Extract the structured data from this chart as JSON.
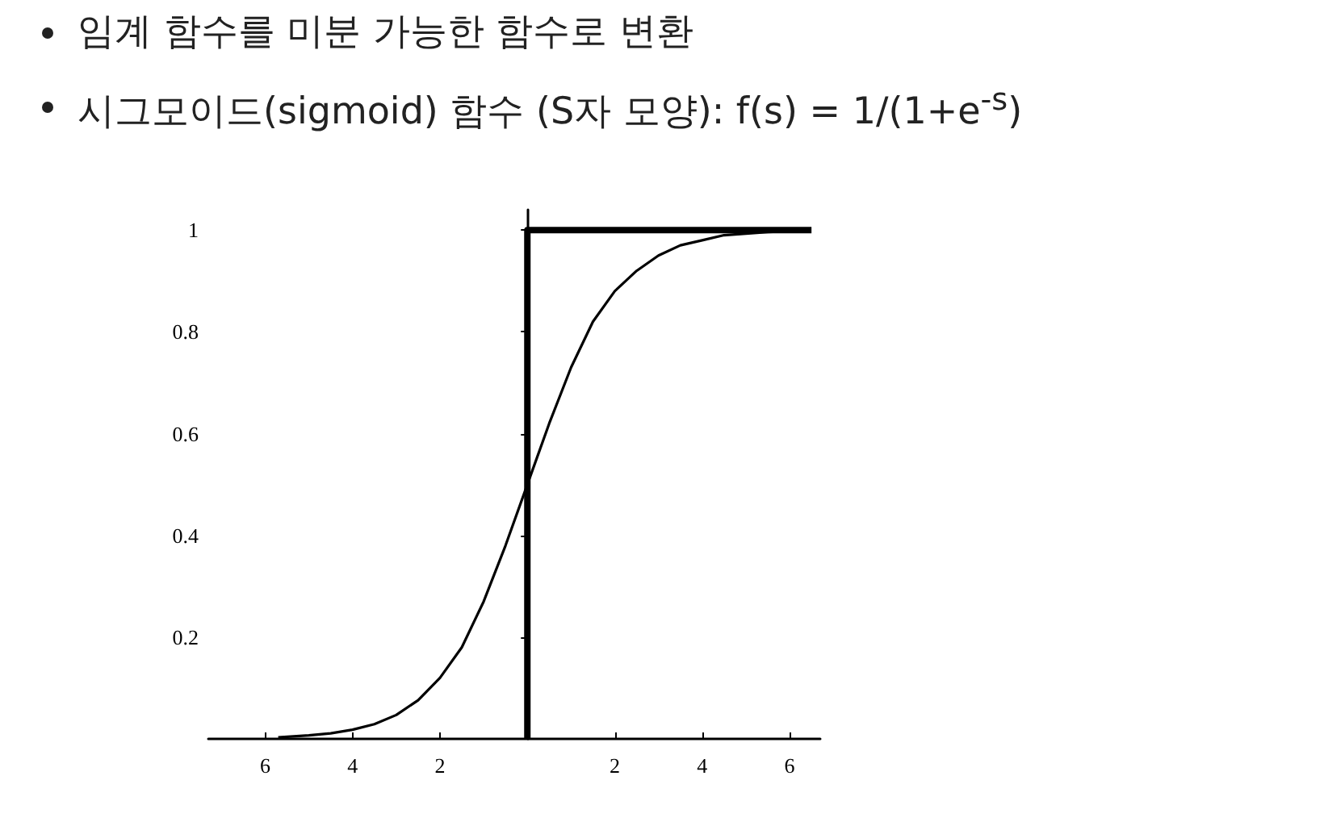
{
  "chart_data": {
    "type": "line",
    "title": "임계 함수를 미분 가능한 함수로 변환",
    "subtitle": "시그모이드(sigmoid) 함수 (S자 모양): f(s) = 1/(1+e$^{-s}$)",
    "series": [
      {
        "color": "#000000",
        "x": [
          -5.7,
          -5,
          -4.5,
          -4,
          -3.5,
          -3,
          -2.5,
          -2,
          -1.5,
          -1,
          -0.5,
          0,
          0.5,
          1,
          1.5,
          2,
          2.5,
          3,
          3.5,
          4,
          4.5,
          5,
          5.5,
          6.1
        ],
        "values": [
          0.003,
          0.007,
          0.011,
          0.018,
          0.029,
          0.047,
          0.076,
          0.12,
          0.18,
          0.27,
          0.38,
          0.5,
          0.62,
          0.73,
          0.82,
          0.88,
          0.92,
          0.95,
          0.97,
          0.98,
          0.99,
          0.993,
          0.996,
          0.998
        ]
      },
      {
        "color": "#000000",
        "x": [
          0,
          0,
          6.5
        ],
        "values": [
          0,
          1,
          1
        ]
      }
    ],
    "xlim": [
      -7.3,
      6.7
    ],
    "ylim": [
      0,
      1.04
    ],
    "xticks": [
      {
        "value": -6,
        "label": "6"
      },
      {
        "value": -4,
        "label": "4"
      },
      {
        "value": -2,
        "label": "2"
      },
      2,
      4,
      6
    ],
    "yticks": [
      0.2,
      0.4,
      0.6,
      0.8,
      1
    ],
    "grid": false,
    "marker": "none",
    "line_style": "solid"
  }
}
